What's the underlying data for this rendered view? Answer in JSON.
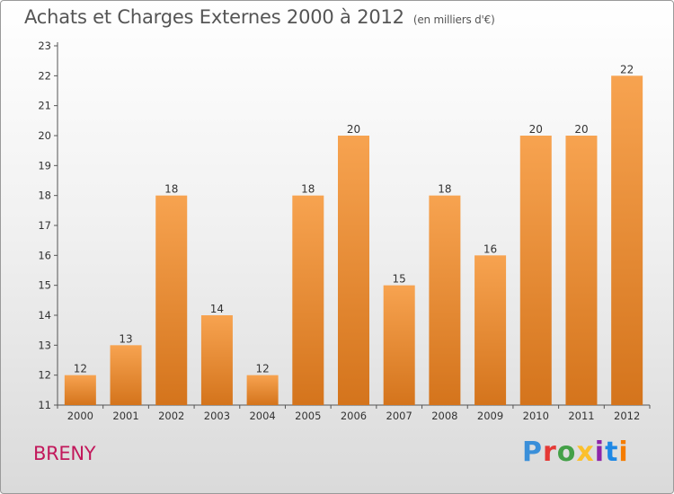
{
  "header": {
    "title": "Achats et Charges Externes 2000 à 2012",
    "unit": "(en milliers d'€)"
  },
  "footer": {
    "commune": "BRENY",
    "logo_text": "Proxiti",
    "logo_colors": [
      "#3a8fd9",
      "#e53935",
      "#43a047",
      "#fbc02d",
      "#8e24aa",
      "#1e88e5",
      "#f57c00"
    ]
  },
  "chart_data": {
    "type": "bar",
    "title": "Achats et Charges Externes 2000 à 2012",
    "subtitle": "(en milliers d'€)",
    "xlabel": "",
    "ylabel": "",
    "categories": [
      "2000",
      "2001",
      "2002",
      "2003",
      "2004",
      "2005",
      "2006",
      "2007",
      "2008",
      "2009",
      "2010",
      "2011",
      "2012"
    ],
    "values": [
      12,
      13,
      18,
      14,
      12,
      18,
      20,
      15,
      18,
      16,
      20,
      20,
      22
    ],
    "data_labels": [
      "12",
      "13",
      "18",
      "14",
      "12",
      "18",
      "20",
      "15",
      "18",
      "16",
      "20",
      "20",
      "22"
    ],
    "ylim": [
      11,
      23
    ],
    "yticks": [
      "11",
      "12",
      "13",
      "14",
      "15",
      "16",
      "17",
      "18",
      "19",
      "20",
      "21",
      "22",
      "23"
    ],
    "grid": false,
    "legend": "none",
    "bar_color_top": "#f7a350",
    "bar_color_bottom": "#d4741c"
  }
}
